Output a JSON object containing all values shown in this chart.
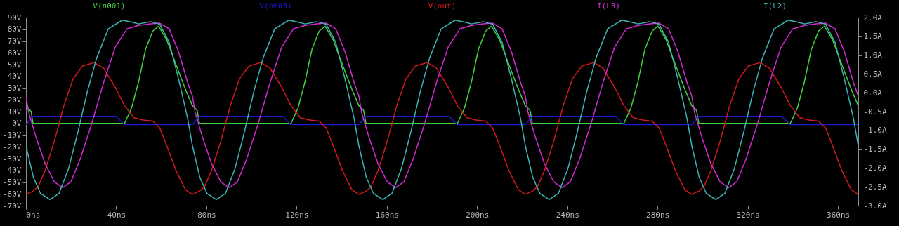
{
  "chart_data": {
    "type": "line",
    "legend": "top",
    "line_style": "solid",
    "marker": "none",
    "grid": false,
    "xlim": [
      0,
      369
    ],
    "xticks": [
      {
        "value": 0,
        "label": "0ns"
      },
      {
        "value": 40,
        "label": "40ns"
      },
      {
        "value": 80,
        "label": "80ns"
      },
      {
        "value": 120,
        "label": "120ns"
      },
      {
        "value": 160,
        "label": "160ns"
      },
      {
        "value": 200,
        "label": "200ns"
      },
      {
        "value": 240,
        "label": "240ns"
      },
      {
        "value": 280,
        "label": "280ns"
      },
      {
        "value": 320,
        "label": "320ns"
      },
      {
        "value": 360,
        "label": "360ns"
      }
    ],
    "ylim": [
      -70,
      90
    ],
    "yticks": [
      {
        "value": -70,
        "label": "-70V"
      },
      {
        "value": -60,
        "label": "-60V"
      },
      {
        "value": -50,
        "label": "-50V"
      },
      {
        "value": -40,
        "label": "-40V"
      },
      {
        "value": -30,
        "label": "-30V"
      },
      {
        "value": -20,
        "label": "-20V"
      },
      {
        "value": -10,
        "label": "-10V"
      },
      {
        "value": 0,
        "label": "0V"
      },
      {
        "value": 10,
        "label": "10V"
      },
      {
        "value": 20,
        "label": "20V"
      },
      {
        "value": 30,
        "label": "30V"
      },
      {
        "value": 40,
        "label": "40V"
      },
      {
        "value": 50,
        "label": "50V"
      },
      {
        "value": 60,
        "label": "60V"
      },
      {
        "value": 70,
        "label": "70V"
      },
      {
        "value": 80,
        "label": "80V"
      },
      {
        "value": 90,
        "label": "90V"
      }
    ],
    "y2lim": [
      -3,
      2
    ],
    "y2ticks": [
      {
        "value": -3,
        "label": "-3.0A"
      },
      {
        "value": -2.5,
        "label": "-2.5A"
      },
      {
        "value": -2,
        "label": "-2.0A"
      },
      {
        "value": -1.5,
        "label": "-1.5A"
      },
      {
        "value": -1,
        "label": "-1.0A"
      },
      {
        "value": -0.5,
        "label": "-0.5A"
      },
      {
        "value": 0,
        "label": "0.0A"
      },
      {
        "value": 0.5,
        "label": "0.5A"
      },
      {
        "value": 1,
        "label": "1.0A"
      },
      {
        "value": 1.5,
        "label": "1.5A"
      },
      {
        "value": 2,
        "label": "2.0A"
      }
    ],
    "series": [
      {
        "name": "V(n001)",
        "color": "#3fd43f",
        "x": [
          0,
          2.3,
          3.1,
          43.7,
          46.8,
          50,
          53,
          56.2,
          58.8,
          62.4,
          66.5,
          70.7,
          73.8,
          75.9,
          76.9,
          117.5,
          120.6,
          123.8,
          126.8,
          130,
          132.6,
          136.2,
          140.3,
          144.5,
          147.6,
          149.7,
          150.7,
          191.3,
          194.4,
          197.6,
          200.6,
          203.8,
          206.4,
          210,
          214.1,
          218.3,
          221.4,
          223.5,
          224.5,
          265.1,
          268.2,
          271.4,
          274.4,
          277.6,
          280.2,
          283.8,
          287.9,
          292.1,
          295.2,
          297.3,
          298.3,
          338.9,
          342,
          345.2,
          348.2,
          351.4,
          354,
          357.6,
          361.7,
          365.9,
          369
        ],
        "values": [
          15,
          10,
          0,
          0,
          13,
          36,
          63,
          78.5,
          82.7,
          71,
          50,
          29,
          15,
          11,
          0,
          0,
          13,
          36,
          63,
          78.5,
          82.7,
          71,
          50,
          29,
          15,
          11,
          0,
          0,
          13,
          36,
          63,
          78.5,
          82.7,
          71,
          50,
          29,
          15,
          11,
          0,
          0,
          13,
          36,
          63,
          78.5,
          82.7,
          71,
          50,
          29,
          15,
          11,
          0,
          0,
          13,
          36,
          63,
          78.5,
          82.7,
          71,
          50,
          29,
          15
        ]
      },
      {
        "name": "V(n003)",
        "color": "#1a1ad0",
        "x": [
          0,
          3.1,
          40,
          43.7,
          73.8,
          76.9,
          113.8,
          117.5,
          147.6,
          150.7,
          187.6,
          191.3,
          221.4,
          224.5,
          261.4,
          265.1,
          295.2,
          298.3,
          335.2,
          338.9,
          369
        ],
        "values": [
          -1,
          6,
          6,
          -1,
          -1,
          6,
          6,
          -1,
          -1,
          6,
          6,
          -1,
          -1,
          6,
          6,
          -1,
          -1,
          6,
          6,
          -1,
          -1
        ]
      },
      {
        "name": "V(out)",
        "color": "#d41a1a",
        "x": [
          0,
          3.3,
          5.4,
          8.5,
          12.6,
          16.8,
          20.9,
          25.1,
          30.3,
          34.4,
          39.6,
          43.7,
          47.9,
          52,
          56.2,
          59.3,
          62.4,
          66.5,
          70.7,
          73.8,
          77.1,
          79.2,
          82.3,
          86.4,
          90.6,
          94.7,
          98.9,
          104.1,
          108.2,
          113.4,
          117.5,
          121.7,
          125.8,
          130,
          133.1,
          136.2,
          140.3,
          144.5,
          147.6,
          150.9,
          153,
          156.1,
          160.2,
          164.4,
          168.5,
          172.7,
          177.9,
          182,
          187.2,
          191.3,
          195.5,
          199.6,
          203.8,
          206.9,
          210,
          214.1,
          218.3,
          221.4,
          224.7,
          226.8,
          229.9,
          234,
          238.2,
          242.3,
          246.5,
          251.7,
          255.8,
          261,
          265.1,
          269.3,
          273.4,
          277.6,
          280.7,
          283.8,
          287.9,
          292.1,
          295.2,
          298.5,
          300.6,
          303.7,
          307.8,
          312,
          316.1,
          320.3,
          325.5,
          329.6,
          334.8,
          338.9,
          343.1,
          347.2,
          351.4,
          354.5,
          357.6,
          361.7,
          365.9,
          369
        ],
        "values": [
          -60.4,
          -57.5,
          -53.7,
          -40,
          -15,
          15,
          38,
          48.8,
          51.7,
          47,
          30.6,
          15,
          4.8,
          2.8,
          1.9,
          -3.9,
          -19,
          -40,
          -56.5,
          -60.4,
          -57.5,
          -53.7,
          -40,
          -15,
          15,
          38,
          48.8,
          51.7,
          47,
          30.6,
          15,
          4.8,
          2.8,
          1.9,
          -3.9,
          -19,
          -40,
          -56.5,
          -60.4,
          -57.5,
          -53.7,
          -40,
          -15,
          15,
          38,
          48.8,
          51.7,
          47,
          30.6,
          15,
          4.8,
          2.8,
          1.9,
          -3.9,
          -19,
          -40,
          -56.5,
          -60.4,
          -57.5,
          -53.7,
          -40,
          -15,
          15,
          38,
          48.8,
          51.7,
          47,
          30.6,
          15,
          4.8,
          2.8,
          1.9,
          -3.9,
          -19,
          -40,
          -56.5,
          -60.4,
          -57.5,
          -53.7,
          -40,
          -15,
          15,
          38,
          48.8,
          51.7,
          47,
          30.6,
          15,
          4.8,
          2.8,
          1.9,
          -3.9,
          -19,
          -40,
          -56.5,
          -60.4
        ]
      },
      {
        "name": "I(L3)",
        "color": "#d42ad4",
        "axis": "y2",
        "x": [
          0,
          1.2,
          4.4,
          8.5,
          12.6,
          16.3,
          19.9,
          24,
          29.2,
          34.4,
          39.6,
          44.8,
          50,
          55.1,
          59.3,
          63.5,
          67.6,
          71.7,
          73.8,
          75,
          78.2,
          82.3,
          86.4,
          90.1,
          93.7,
          97.8,
          103,
          108.2,
          113.4,
          118.6,
          123.8,
          128.9,
          133.1,
          137.3,
          141.4,
          145.5,
          147.6,
          148.8,
          152,
          156.1,
          160.2,
          163.9,
          167.5,
          171.6,
          176.8,
          182,
          187.2,
          192.4,
          197.6,
          202.7,
          206.9,
          211.1,
          215.2,
          219.3,
          221.4,
          222.6,
          225.8,
          229.9,
          234,
          237.7,
          241.3,
          245.4,
          250.6,
          255.8,
          261,
          266.2,
          271.4,
          276.5,
          280.7,
          284.9,
          289,
          293.1,
          295.2,
          296.4,
          299.6,
          303.7,
          307.8,
          311.5,
          315.1,
          319.2,
          324.4,
          329.6,
          334.8,
          340,
          345.2,
          350.3,
          354.5,
          358.7,
          362.8,
          366.9,
          369
        ],
        "values": [
          -0.09,
          -0.52,
          -1.17,
          -1.89,
          -2.37,
          -2.52,
          -2.37,
          -1.77,
          -0.81,
          0.27,
          1.22,
          1.7,
          1.79,
          1.83,
          1.85,
          1.7,
          1.1,
          0.27,
          -0.09,
          -0.52,
          -1.17,
          -1.89,
          -2.37,
          -2.52,
          -2.37,
          -1.77,
          -0.81,
          0.27,
          1.22,
          1.7,
          1.79,
          1.83,
          1.85,
          1.7,
          1.1,
          0.27,
          -0.09,
          -0.52,
          -1.17,
          -1.89,
          -2.37,
          -2.52,
          -2.37,
          -1.77,
          -0.81,
          0.27,
          1.22,
          1.7,
          1.79,
          1.83,
          1.85,
          1.7,
          1.1,
          0.27,
          -0.09,
          -0.52,
          -1.17,
          -1.89,
          -2.37,
          -2.52,
          -2.37,
          -1.77,
          -0.81,
          0.27,
          1.22,
          1.7,
          1.79,
          1.83,
          1.85,
          1.7,
          1.1,
          0.27,
          -0.09,
          -0.52,
          -1.17,
          -1.89,
          -2.37,
          -2.52,
          -2.37,
          -1.77,
          -0.81,
          0.27,
          1.22,
          1.7,
          1.79,
          1.83,
          1.85,
          1.7,
          1.1,
          0.27,
          -0.09
        ]
      },
      {
        "name": "I(L2)",
        "color": "#3fb4b4",
        "axis": "y2",
        "x": [
          0,
          3.3,
          6.4,
          10.6,
          14.7,
          18.9,
          23,
          27.2,
          31.3,
          36.5,
          42.7,
          46.8,
          50,
          55.1,
          59.3,
          63.5,
          67.6,
          71.7,
          73.8,
          77.1,
          80.2,
          84.4,
          88.5,
          92.7,
          96.8,
          101,
          105.1,
          110.3,
          116.5,
          120.6,
          123.8,
          128.9,
          133.1,
          137.3,
          141.4,
          145.5,
          147.6,
          150.9,
          154,
          158.2,
          162.3,
          166.5,
          170.6,
          174.8,
          178.9,
          184.1,
          190.3,
          194.4,
          197.6,
          202.7,
          206.9,
          211.1,
          215.2,
          219.3,
          221.4,
          224.7,
          227.8,
          232,
          236.1,
          240.3,
          244.4,
          248.6,
          252.7,
          257.9,
          264.1,
          268.2,
          271.4,
          276.5,
          280.7,
          284.9,
          289,
          293.1,
          295.2,
          298.5,
          301.6,
          305.8,
          309.9,
          314.1,
          318.2,
          322.4,
          326.5,
          331.7,
          337.9,
          342,
          345.2,
          350.3,
          354.5,
          358.7,
          362.8,
          366.9,
          369
        ],
        "values": [
          -1.41,
          -2.25,
          -2.67,
          -2.84,
          -2.67,
          -2.01,
          -1.05,
          0.03,
          0.92,
          1.7,
          1.93,
          1.88,
          1.83,
          1.89,
          1.82,
          1.34,
          0.38,
          -0.69,
          -1.41,
          -2.25,
          -2.67,
          -2.84,
          -2.67,
          -2.01,
          -1.05,
          0.03,
          0.92,
          1.7,
          1.93,
          1.88,
          1.83,
          1.89,
          1.82,
          1.34,
          0.38,
          -0.69,
          -1.41,
          -2.25,
          -2.67,
          -2.84,
          -2.67,
          -2.01,
          -1.05,
          0.03,
          0.92,
          1.7,
          1.93,
          1.88,
          1.83,
          1.89,
          1.82,
          1.34,
          0.38,
          -0.69,
          -1.41,
          -2.25,
          -2.67,
          -2.84,
          -2.67,
          -2.01,
          -1.05,
          0.03,
          0.92,
          1.7,
          1.93,
          1.88,
          1.83,
          1.89,
          1.82,
          1.34,
          0.38,
          -0.69,
          -1.41,
          -2.25,
          -2.67,
          -2.84,
          -2.67,
          -2.01,
          -1.05,
          0.03,
          0.92,
          1.7,
          1.93,
          1.88,
          1.83,
          1.89,
          1.82,
          1.34,
          0.38,
          -0.69,
          -1.41
        ]
      }
    ]
  }
}
